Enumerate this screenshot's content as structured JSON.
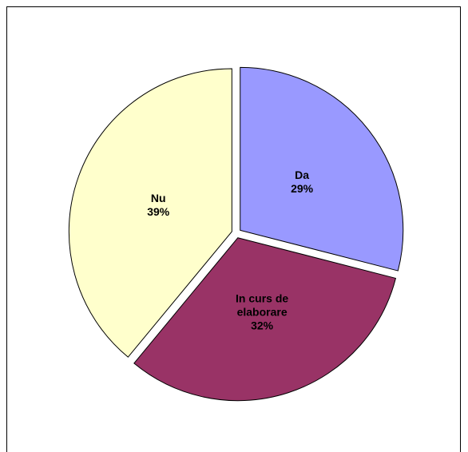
{
  "chart_data": {
    "type": "pie",
    "categories": [
      "Da",
      "In curs de elaborare",
      "Nu"
    ],
    "values": [
      29,
      32,
      39
    ],
    "value_labels": [
      "29%",
      "32%",
      "39%"
    ],
    "colors": [
      "#9999ff",
      "#993366",
      "#ffffcc"
    ]
  }
}
